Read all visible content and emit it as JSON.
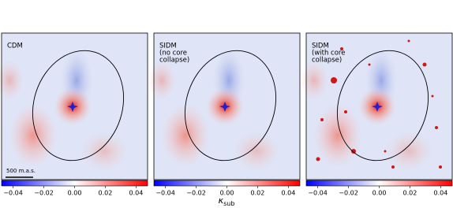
{
  "chart_data": [
    {
      "type": "image",
      "label": [
        "CDM"
      ],
      "scale_bar": "500 m.a.s.",
      "colorbar": {
        "xlim": [
          -0.0475,
          0.0475
        ],
        "xticks": [
          {
            "value": -0.04,
            "label": "−0.04"
          },
          {
            "value": -0.02,
            "label": "−0.02"
          },
          {
            "value": 0,
            "label": "0.00"
          },
          0.02,
          0.04
        ]
      }
    },
    {
      "type": "image",
      "label": [
        "SIDM",
        "(no core",
        "collapse)"
      ],
      "colorbar": {
        "xlim": [
          -0.0475,
          0.0475
        ],
        "xticks": [
          {
            "value": -0.04,
            "label": "−0.04"
          },
          {
            "value": -0.02,
            "label": "−0.02"
          },
          {
            "value": 0,
            "label": "0.00"
          },
          0.02,
          0.04
        ]
      }
    },
    {
      "type": "image",
      "label": [
        "SIDM",
        "(with core",
        "collapse)"
      ],
      "colorbar": {
        "xlim": [
          -0.0475,
          0.0475
        ],
        "xticks": [
          {
            "value": -0.04,
            "label": "−0.04"
          },
          {
            "value": -0.02,
            "label": "−0.02"
          },
          {
            "value": 0,
            "label": "0.00"
          },
          0.02,
          0.04
        ]
      }
    }
  ],
  "colorbar_label": {
    "symbol": "κ",
    "subscript": "sub"
  }
}
